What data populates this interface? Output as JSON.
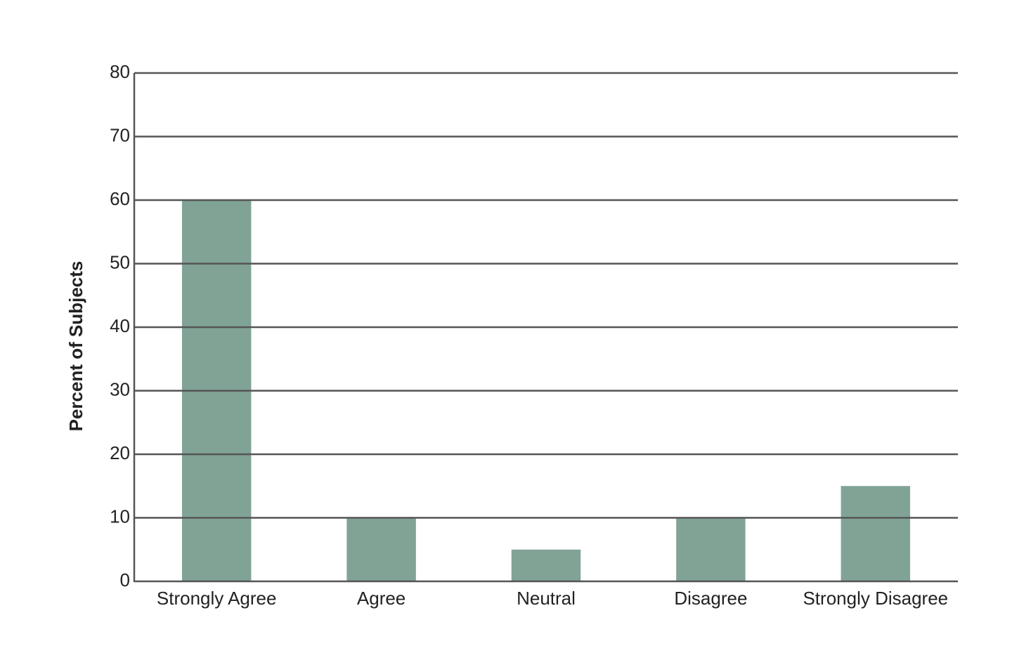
{
  "chart_data": {
    "type": "bar",
    "y_label": "Percent of Subjects",
    "categories": [
      "Strongly Agree",
      "Agree",
      "Neutral",
      "Disagree",
      "Strongly Disagree"
    ],
    "values": [
      60,
      10,
      5,
      10,
      15
    ],
    "color": "#80a396",
    "ylim": [
      0,
      80
    ],
    "yticks": [
      0,
      10,
      20,
      30,
      40,
      50,
      60,
      70,
      80
    ],
    "grid": true
  }
}
